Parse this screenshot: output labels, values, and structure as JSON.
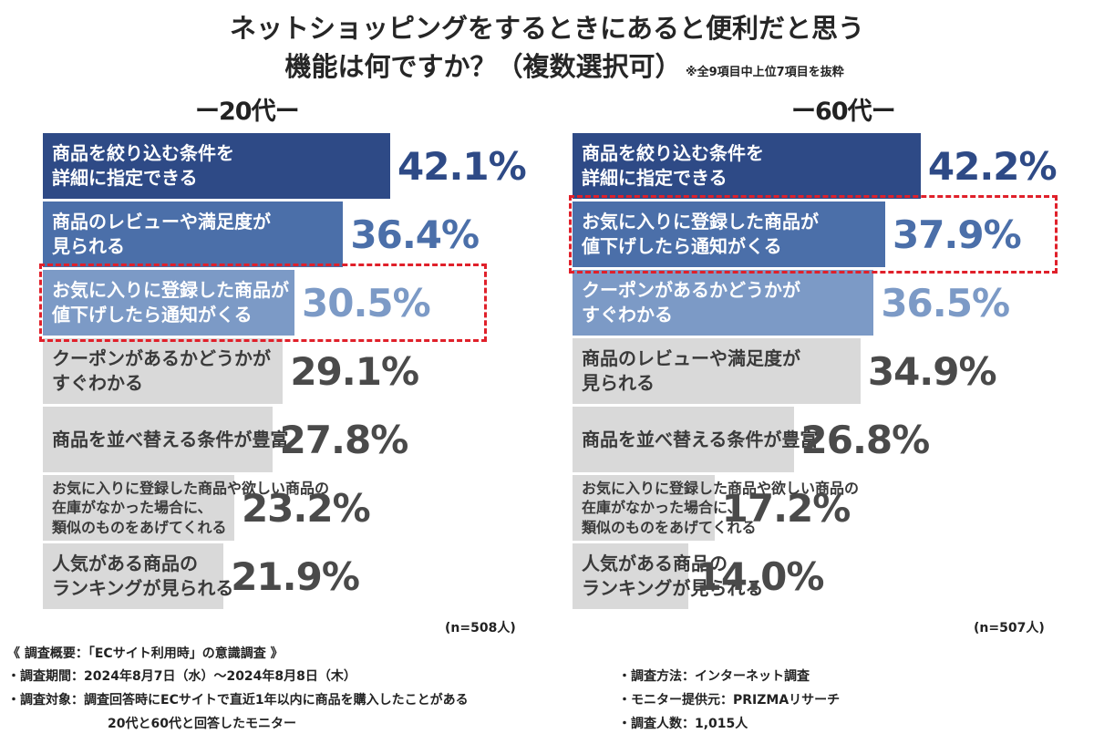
{
  "title_line1": "ネットショッピングをするときにあると便利だと思う",
  "title_line2": "機能は何ですか？（複数選択可）",
  "note": "※全9項目中上位7項目を抜粋",
  "colors": {
    "dark_blue": "#2e4a86",
    "mid_blue": "#4b6fa9",
    "light_blue": "#7c9ac6",
    "gray": "#d9d9d9",
    "highlight_red": "#e0202a"
  },
  "chart_data": [
    {
      "type": "bar",
      "title": "ー20代ー",
      "xlim": [
        0,
        50
      ],
      "n_label": "(n=508人)",
      "highlight_index": 2,
      "categories": [
        "商品を絞り込む条件を\n詳細に指定できる",
        "商品のレビューや満足度が\n見られる",
        "お気に入りに登録した商品が\n値下げしたら通知がくる",
        "クーポンがあるかどうかが\nすぐわかる",
        "商品を並べ替える条件が豊富",
        "お気に入りに登録した商品や欲しい商品の\n在庫がなかった場合に、\n類似のものをあげてくれる",
        "人気がある商品の\nランキングが見られる"
      ],
      "values": [
        42.1,
        36.4,
        30.5,
        29.1,
        27.8,
        23.2,
        21.9
      ],
      "value_labels": [
        "42.1%",
        "36.4%",
        "30.5%",
        "29.1%",
        "27.8%",
        "23.2%",
        "21.9%"
      ],
      "bar_colors": [
        "#2e4a86",
        "#4b6fa9",
        "#7c9ac6",
        "#d9d9d9",
        "#d9d9d9",
        "#d9d9d9",
        "#d9d9d9"
      ]
    },
    {
      "type": "bar",
      "title": "ー60代ー",
      "xlim": [
        0,
        50
      ],
      "n_label": "(n=507人)",
      "highlight_index": 1,
      "categories": [
        "商品を絞り込む条件を\n詳細に指定できる",
        "お気に入りに登録した商品が\n値下げしたら通知がくる",
        "クーポンがあるかどうかが\nすぐわかる",
        "商品のレビューや満足度が\n見られる",
        "商品を並べ替える条件が豊富",
        "お気に入りに登録した商品や欲しい商品の\n在庫がなかった場合に、\n類似のものをあげてくれる",
        "人気がある商品の\nランキングが見られる"
      ],
      "values": [
        42.2,
        37.9,
        36.5,
        34.9,
        26.8,
        17.2,
        14.0
      ],
      "value_labels": [
        "42.2%",
        "37.9%",
        "36.5%",
        "34.9%",
        "26.8%",
        "17.2%",
        "14.0%"
      ],
      "bar_colors": [
        "#2e4a86",
        "#4b6fa9",
        "#7c9ac6",
        "#d9d9d9",
        "#d9d9d9",
        "#d9d9d9",
        "#d9d9d9"
      ]
    }
  ],
  "footer": {
    "heading": "《 調査概要：「ECサイト利用時」の意識調査 》",
    "period": "・調査期間：2024年8月7日（水）〜2024年8月8日（木）",
    "target_line1": "・調査対象：調査回答時にECサイトで直近1年以内に商品を購入したことがある",
    "target_line2": "20代と60代と回答したモニター",
    "method": "・調査方法：インターネット調査",
    "provider": "・モニター提供元：PRIZMAリサーチ",
    "count": "・調査人数：1,015人"
  }
}
